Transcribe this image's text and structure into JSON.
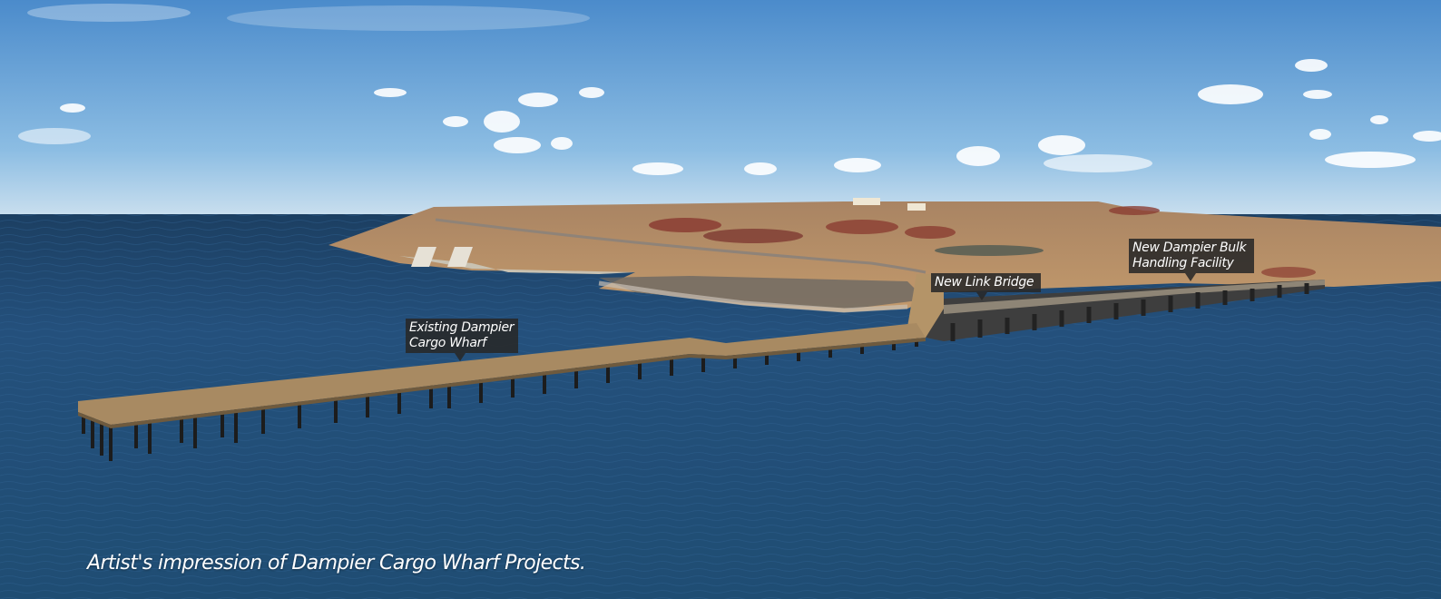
{
  "labels": {
    "existing_wharf": "Existing Dampier\nCargo Wharf",
    "link_bridge": "New Link Bridge",
    "bulk_facility": "New Dampier Bulk\nHandling Facility"
  },
  "caption": "Artist's impression of Dampier Cargo Wharf Projects.",
  "colors": {
    "sky_top": "#4f8fcd",
    "sky_horizon": "#c5dced",
    "sea": "#234f7a",
    "land": "#b98a5e",
    "red_earth": "#8b3d32",
    "deck": "#a98a62",
    "new_wharf": "#4a4a4a"
  }
}
